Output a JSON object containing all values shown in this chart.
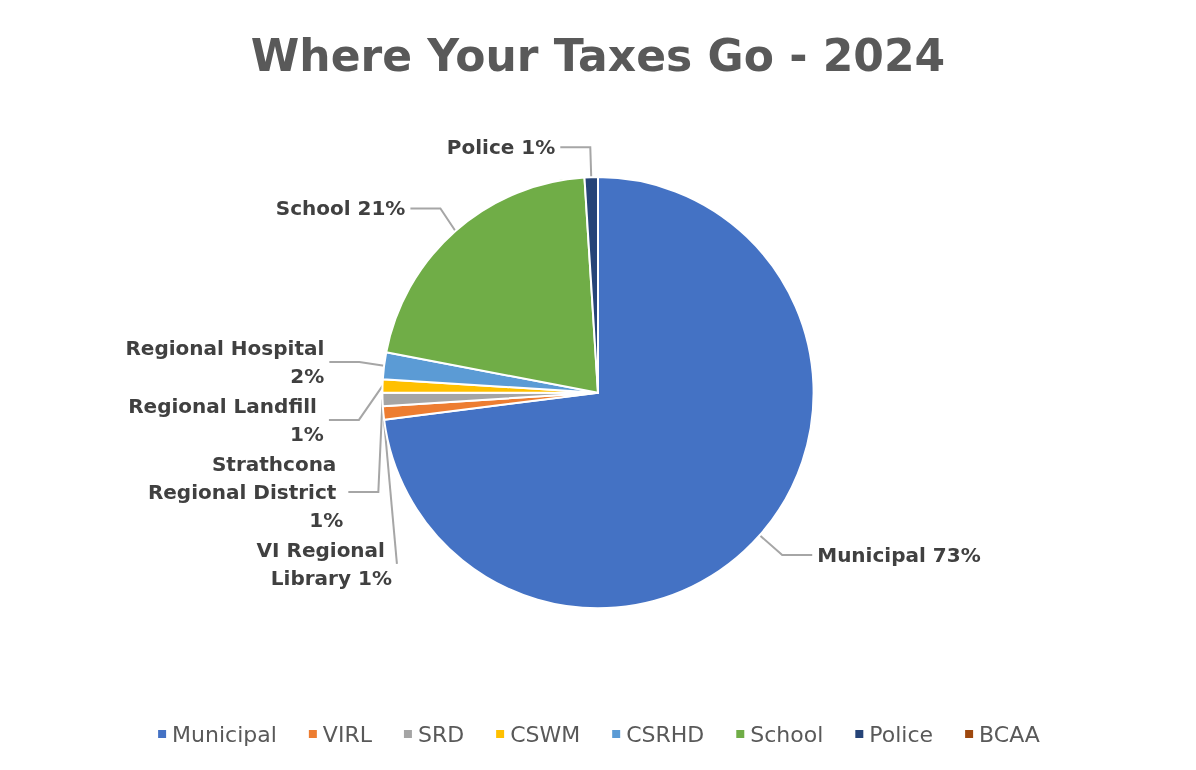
{
  "chart_data": {
    "type": "pie",
    "title": "Where Your Taxes Go - 2024",
    "categories": [
      "Municipal",
      "VIRL",
      "SRD",
      "CSWM",
      "CSRHD",
      "School",
      "Police",
      "BCAA"
    ],
    "values": [
      73,
      1,
      1,
      1,
      2,
      21,
      1,
      0
    ],
    "colors": [
      "#4472c4",
      "#ed7d31",
      "#a5a5a5",
      "#ffc000",
      "#5b9bd5",
      "#70ad47",
      "#264478",
      "#9e480e"
    ],
    "value_labels": [
      "Municipal 73%",
      "VI Regional Library 1%",
      "Strathcona Regional District 1%",
      "Regional Landfill 1%",
      "Regional Hospital 2%",
      "School 21%",
      "Police 1%",
      null
    ],
    "legend": "bottom"
  }
}
